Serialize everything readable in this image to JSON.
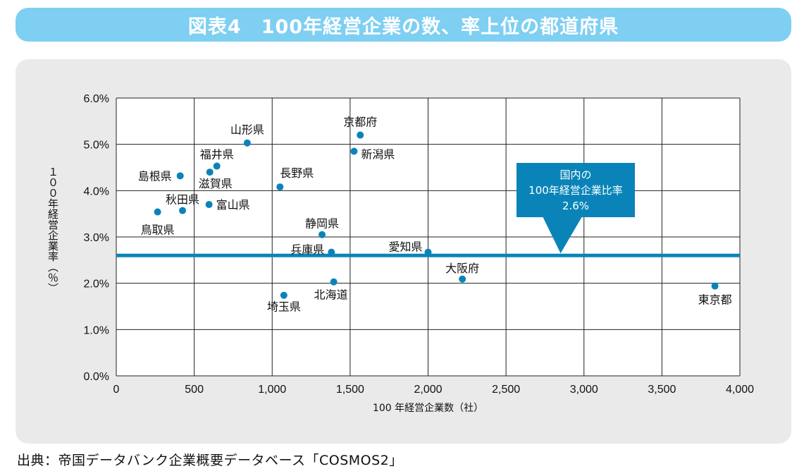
{
  "header": {
    "title": "図表4　100年経営企業の数、率上位の都道府県"
  },
  "source_note": "出典：帝国データバンク企業概要データベース「COSMOS2」",
  "colors": {
    "title_bar": "#7ecff2",
    "accent": "#0a84b8",
    "panel_bg": "#eaeaea"
  },
  "chart_data": {
    "type": "scatter",
    "title": "",
    "xlabel": "100 年経営企業数（社）",
    "ylabel": "１００年経営企業率（％）",
    "xlim": [
      0,
      4000
    ],
    "ylim": [
      0,
      6
    ],
    "x_ticks": [
      0,
      500,
      1000,
      1500,
      2000,
      2500,
      3000,
      3500,
      4000
    ],
    "x_tick_labels": [
      "0",
      "500",
      "1,000",
      "1,500",
      "2,000",
      "2,500",
      "3,000",
      "3,500",
      "4,000"
    ],
    "y_ticks": [
      0,
      1,
      2,
      3,
      4,
      5,
      6
    ],
    "y_tick_labels": [
      "0.0%",
      "1.0%",
      "2.0%",
      "3.0%",
      "4.0%",
      "5.0%",
      "6.0%"
    ],
    "grid": true,
    "points": [
      {
        "name": "山形県",
        "x": 840,
        "y": 5.03
      },
      {
        "name": "京都府",
        "x": 1565,
        "y": 5.2
      },
      {
        "name": "新潟県",
        "x": 1525,
        "y": 4.85
      },
      {
        "name": "福井県",
        "x": 645,
        "y": 4.53
      },
      {
        "name": "滋賀県",
        "x": 600,
        "y": 4.4
      },
      {
        "name": "島根県",
        "x": 410,
        "y": 4.32
      },
      {
        "name": "長野県",
        "x": 1050,
        "y": 4.08
      },
      {
        "name": "秋田県",
        "x": 425,
        "y": 3.57
      },
      {
        "name": "富山県",
        "x": 595,
        "y": 3.7
      },
      {
        "name": "鳥取県",
        "x": 265,
        "y": 3.54
      },
      {
        "name": "静岡県",
        "x": 1320,
        "y": 3.05
      },
      {
        "name": "兵庫県",
        "x": 1380,
        "y": 2.67
      },
      {
        "name": "愛知県",
        "x": 2000,
        "y": 2.67
      },
      {
        "name": "大阪府",
        "x": 2220,
        "y": 2.09
      },
      {
        "name": "北海道",
        "x": 1395,
        "y": 2.03
      },
      {
        "name": "埼玉県",
        "x": 1075,
        "y": 1.74
      },
      {
        "name": "東京都",
        "x": 3840,
        "y": 1.94
      }
    ],
    "reference_line": {
      "y": 2.6
    },
    "annotation": {
      "lines": [
        "国内の",
        "100年経営企業比率",
        "2.6%"
      ],
      "pointer_x": 2850
    }
  }
}
